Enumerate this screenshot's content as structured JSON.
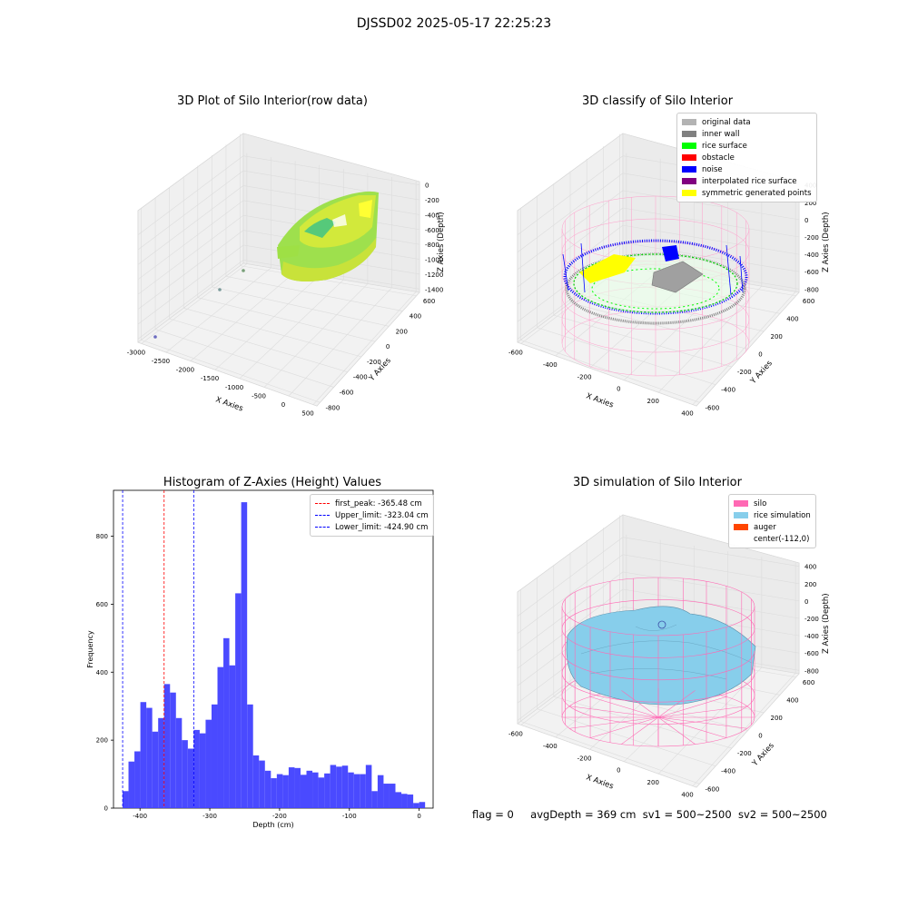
{
  "suptitle": "DJSSD02 2025-05-17 22:25:23",
  "panels": {
    "raw": {
      "title": "3D Plot of Silo Interior(row data)",
      "xlabel": "X Axies",
      "ylabel": "Y Axies",
      "zlabel": "Z Axies (Depth)",
      "xticks": [
        "-3000",
        "-2500",
        "-2000",
        "-1500",
        "-1000",
        "-500",
        "0",
        "500"
      ],
      "yticks": [
        "-800",
        "-600",
        "-400",
        "-200",
        "0",
        "200",
        "400",
        "600"
      ],
      "zticks": [
        "0",
        "-200",
        "-400",
        "-600",
        "-800",
        "-1000",
        "-1200",
        "-1400"
      ],
      "colors": {
        "a": "#7fd64a",
        "b": "#d6e637",
        "c": "#35c08c"
      }
    },
    "classify": {
      "title": "3D classify of Silo Interior",
      "xlabel": "X Axies",
      "ylabel": "Y Axies",
      "zlabel": "Z Axies (Depth)",
      "xticks": [
        "-600",
        "-400",
        "-200",
        "0",
        "200",
        "400"
      ],
      "yticks": [
        "-600",
        "-400",
        "-200",
        "0",
        "200",
        "400",
        "600"
      ],
      "zticks": [
        "400",
        "200",
        "0",
        "-200",
        "-400",
        "-600",
        "-800"
      ],
      "legend": [
        {
          "label": "original data",
          "color": "#b3b3b3"
        },
        {
          "label": "inner wall",
          "color": "#808080"
        },
        {
          "label": "rice surface",
          "color": "#00ff00"
        },
        {
          "label": "obstacle",
          "color": "#ff0000"
        },
        {
          "label": "noise",
          "color": "#0000ff"
        },
        {
          "label": "interpolated rice surface",
          "color": "#800080"
        },
        {
          "label": "symmetric generated points",
          "color": "#ffff00"
        }
      ],
      "silo_color": "#ff9ecb"
    },
    "simulation": {
      "title": "3D simulation of Silo Interior",
      "xlabel": "X Axies",
      "ylabel": "Y Axies",
      "zlabel": "Z Axies (Depth)",
      "xticks": [
        "-600",
        "-400",
        "-200",
        "0",
        "200",
        "400"
      ],
      "yticks": [
        "-600",
        "-400",
        "-200",
        "0",
        "200",
        "400",
        "600"
      ],
      "zticks": [
        "400",
        "200",
        "0",
        "-200",
        "-400",
        "-600",
        "-800"
      ],
      "legend": [
        {
          "label": "silo",
          "color": "#ff69b4"
        },
        {
          "label": "rice simulation",
          "color": "#87ceeb"
        },
        {
          "label": "auger",
          "color": "#ff4500"
        },
        {
          "label": "center(-112,0)",
          "color": "#ffffff"
        }
      ]
    }
  },
  "chart_data": {
    "type": "bar",
    "title": "Histogram of Z-Axies (Height) Values",
    "xlabel": "Depth (cm)",
    "ylabel": "Frequency",
    "xlim": [
      -438,
      20
    ],
    "ylim": [
      0,
      935
    ],
    "xticks": [
      -400,
      -300,
      -200,
      -100,
      0
    ],
    "yticks": [
      0,
      200,
      400,
      600,
      800
    ],
    "bar_color": "#4040ff",
    "bin_width": 8.5,
    "bin_start": -425,
    "values": [
      50,
      137,
      167,
      312,
      295,
      225,
      265,
      365,
      340,
      265,
      200,
      175,
      230,
      220,
      260,
      305,
      415,
      500,
      420,
      632,
      900,
      305,
      155,
      140,
      110,
      88,
      100,
      97,
      120,
      118,
      98,
      110,
      105,
      90,
      102,
      127,
      122,
      125,
      105,
      100,
      100,
      127,
      50,
      97,
      72,
      72,
      47,
      42,
      40,
      15,
      18
    ],
    "vlines": [
      {
        "label": "first_peak: -365.48 cm",
        "x": -365.48,
        "color": "#ff0000"
      },
      {
        "label": "Upper_limit: -323.04 cm",
        "x": -323.04,
        "color": "#0000ff"
      },
      {
        "label": "Lower_limit: -424.90 cm",
        "x": -424.9,
        "color": "#0000ff"
      }
    ],
    "legend_position": "top-right"
  },
  "footer": {
    "flag": "flag = 0",
    "avg": "avgDepth = 369 cm",
    "sv1": "sv1 = 500~2500",
    "sv2": "sv2 = 500~2500"
  }
}
